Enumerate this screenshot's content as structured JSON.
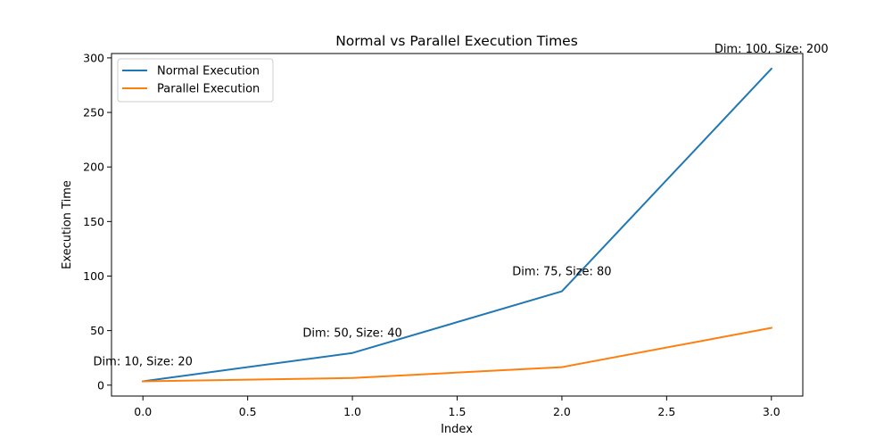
{
  "chart_data": {
    "type": "line",
    "title": "Normal vs Parallel Execution Times",
    "xlabel": "Index",
    "ylabel": "Execution Time",
    "xlim": [
      -0.15,
      3.15
    ],
    "ylim": [
      -10,
      304
    ],
    "x_ticks": [
      "0.0",
      "0.5",
      "1.0",
      "1.5",
      "2.0",
      "2.5",
      "3.0"
    ],
    "y_ticks": [
      "0",
      "50",
      "100",
      "150",
      "200",
      "250",
      "300"
    ],
    "x": [
      0,
      1,
      2,
      3
    ],
    "series": [
      {
        "name": "Normal Execution",
        "color": "#1f77b4",
        "values": [
          3.5,
          29.5,
          86,
          290
        ]
      },
      {
        "name": "Parallel Execution",
        "color": "#ff7f0e",
        "values": [
          3.5,
          6.5,
          16.5,
          52.5
        ]
      }
    ],
    "annotations": [
      {
        "x": 0,
        "y": 3.5,
        "text": "Dim: 10, Size: 20"
      },
      {
        "x": 1,
        "y": 29.5,
        "text": "Dim: 50, Size: 40"
      },
      {
        "x": 2,
        "y": 86,
        "text": "Dim: 75, Size: 80"
      },
      {
        "x": 3,
        "y": 290,
        "text": "Dim: 100, Size: 200"
      }
    ],
    "legend_position": "upper-left",
    "grid": false
  }
}
